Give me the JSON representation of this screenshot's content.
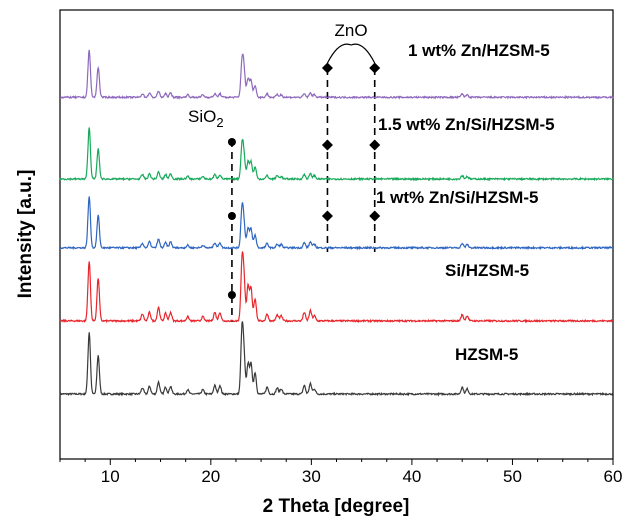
{
  "chart_data": {
    "type": "line",
    "xlabel": "2 Theta [degree]",
    "ylabel": "Intensity [a.u.]",
    "xlim": [
      5,
      60
    ],
    "xticks": [
      "10",
      "20",
      "30",
      "40",
      "50",
      "60"
    ],
    "yticks_shown": false,
    "stacked_offsets": true,
    "series": [
      {
        "name": "HZSM-5",
        "color": "#3a3a3a",
        "offset": 0,
        "peaks": [
          [
            7.9,
            0.72
          ],
          [
            8.8,
            0.45
          ],
          [
            13.2,
            0.07
          ],
          [
            13.9,
            0.09
          ],
          [
            14.8,
            0.14
          ],
          [
            15.5,
            0.08
          ],
          [
            16.0,
            0.09
          ],
          [
            17.7,
            0.05
          ],
          [
            19.2,
            0.05
          ],
          [
            20.4,
            0.1
          ],
          [
            20.9,
            0.1
          ],
          [
            23.1,
            0.72
          ],
          [
            23.3,
            0.4
          ],
          [
            23.7,
            0.35
          ],
          [
            24.0,
            0.35
          ],
          [
            24.4,
            0.25
          ],
          [
            25.6,
            0.08
          ],
          [
            26.6,
            0.07
          ],
          [
            27.0,
            0.06
          ],
          [
            29.3,
            0.1
          ],
          [
            29.9,
            0.12
          ],
          [
            30.3,
            0.06
          ],
          [
            45.0,
            0.08
          ],
          [
            45.5,
            0.06
          ]
        ]
      },
      {
        "name": "Si/HZSM-5",
        "color": "#e8262b",
        "offset": 0.85,
        "peaks": [
          [
            7.9,
            0.7
          ],
          [
            8.8,
            0.5
          ],
          [
            13.2,
            0.08
          ],
          [
            13.9,
            0.1
          ],
          [
            14.8,
            0.16
          ],
          [
            15.5,
            0.09
          ],
          [
            16.0,
            0.1
          ],
          [
            17.7,
            0.05
          ],
          [
            19.2,
            0.05
          ],
          [
            20.4,
            0.1
          ],
          [
            20.9,
            0.1
          ],
          [
            23.1,
            0.65
          ],
          [
            23.3,
            0.45
          ],
          [
            23.7,
            0.4
          ],
          [
            24.0,
            0.38
          ],
          [
            24.4,
            0.26
          ],
          [
            25.6,
            0.08
          ],
          [
            26.6,
            0.07
          ],
          [
            27.0,
            0.06
          ],
          [
            29.3,
            0.1
          ],
          [
            29.9,
            0.12
          ],
          [
            30.3,
            0.06
          ],
          [
            45.0,
            0.07
          ],
          [
            45.5,
            0.06
          ]
        ]
      },
      {
        "name": "1 wt% Zn/Si/HZSM-5",
        "color": "#2f66c1",
        "offset": 1.7,
        "peaks": [
          [
            7.9,
            0.6
          ],
          [
            8.8,
            0.38
          ],
          [
            13.2,
            0.05
          ],
          [
            13.9,
            0.07
          ],
          [
            14.8,
            0.1
          ],
          [
            15.5,
            0.06
          ],
          [
            16.0,
            0.07
          ],
          [
            17.7,
            0.03
          ],
          [
            19.2,
            0.03
          ],
          [
            20.4,
            0.06
          ],
          [
            20.9,
            0.06
          ],
          [
            23.1,
            0.45
          ],
          [
            23.3,
            0.25
          ],
          [
            23.7,
            0.22
          ],
          [
            24.0,
            0.22
          ],
          [
            24.4,
            0.15
          ],
          [
            25.6,
            0.05
          ],
          [
            26.6,
            0.04
          ],
          [
            27.0,
            0.04
          ],
          [
            29.3,
            0.06
          ],
          [
            29.9,
            0.07
          ],
          [
            30.3,
            0.04
          ],
          [
            45.0,
            0.05
          ],
          [
            45.5,
            0.04
          ]
        ]
      },
      {
        "name": "1.5 wt% Zn/Si/HZSM-5",
        "color": "#18a95b",
        "offset": 2.5,
        "peaks": [
          [
            7.9,
            0.6
          ],
          [
            8.8,
            0.35
          ],
          [
            13.2,
            0.05
          ],
          [
            13.9,
            0.06
          ],
          [
            14.8,
            0.08
          ],
          [
            15.5,
            0.05
          ],
          [
            16.0,
            0.06
          ],
          [
            17.7,
            0.03
          ],
          [
            19.2,
            0.03
          ],
          [
            20.4,
            0.05
          ],
          [
            20.9,
            0.05
          ],
          [
            23.1,
            0.38
          ],
          [
            23.3,
            0.25
          ],
          [
            23.7,
            0.2
          ],
          [
            24.0,
            0.2
          ],
          [
            24.4,
            0.14
          ],
          [
            25.6,
            0.04
          ],
          [
            26.6,
            0.04
          ],
          [
            27.0,
            0.03
          ],
          [
            29.3,
            0.05
          ],
          [
            29.9,
            0.06
          ],
          [
            30.3,
            0.04
          ],
          [
            45.0,
            0.04
          ],
          [
            45.5,
            0.03
          ]
        ]
      },
      {
        "name": "1 wt% Zn/HZSM-5",
        "color": "#8e69bd",
        "offset": 3.45,
        "peaks": [
          [
            7.9,
            0.55
          ],
          [
            8.8,
            0.35
          ],
          [
            13.2,
            0.04
          ],
          [
            13.9,
            0.05
          ],
          [
            14.8,
            0.07
          ],
          [
            15.5,
            0.04
          ],
          [
            16.0,
            0.05
          ],
          [
            17.7,
            0.03
          ],
          [
            19.2,
            0.03
          ],
          [
            20.4,
            0.04
          ],
          [
            20.9,
            0.04
          ],
          [
            23.1,
            0.4
          ],
          [
            23.3,
            0.3
          ],
          [
            23.7,
            0.22
          ],
          [
            24.0,
            0.2
          ],
          [
            24.4,
            0.14
          ],
          [
            25.6,
            0.04
          ],
          [
            26.6,
            0.03
          ],
          [
            27.0,
            0.03
          ],
          [
            29.3,
            0.04
          ],
          [
            29.9,
            0.05
          ],
          [
            30.3,
            0.03
          ],
          [
            45.0,
            0.04
          ],
          [
            45.5,
            0.03
          ]
        ]
      }
    ],
    "annotations": [
      {
        "label": "ZnO",
        "marker": "diamond",
        "x": [
          31.6,
          36.3
        ]
      },
      {
        "label": "SiO",
        "label_subscript": "2",
        "marker": "circle",
        "x": [
          22.1
        ]
      }
    ]
  }
}
